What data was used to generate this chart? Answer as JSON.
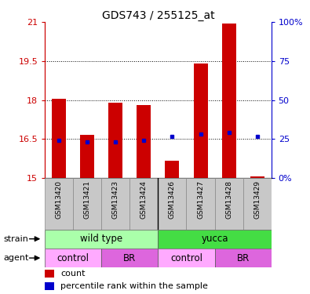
{
  "title": "GDS743 / 255125_at",
  "samples": [
    "GSM13420",
    "GSM13421",
    "GSM13423",
    "GSM13424",
    "GSM13426",
    "GSM13427",
    "GSM13428",
    "GSM13429"
  ],
  "bar_bottoms": [
    15.0,
    15.0,
    15.0,
    15.0,
    15.0,
    15.0,
    15.0,
    15.0
  ],
  "bar_tops": [
    18.05,
    16.65,
    17.9,
    17.8,
    15.65,
    19.4,
    20.95,
    15.05
  ],
  "percentile_values": [
    16.45,
    16.4,
    16.4,
    16.45,
    16.6,
    16.7,
    16.75,
    16.6
  ],
  "ylim_left": [
    15,
    21
  ],
  "ylim_right": [
    0,
    100
  ],
  "yticks_left": [
    15,
    16.5,
    18,
    19.5,
    21
  ],
  "yticks_right": [
    0,
    25,
    50,
    75,
    100
  ],
  "ytick_labels_left": [
    "15",
    "16.5",
    "18",
    "19.5",
    "21"
  ],
  "ytick_labels_right": [
    "0%",
    "25",
    "50",
    "75",
    "100%"
  ],
  "strain_groups": [
    {
      "label": "wild type",
      "start": 0,
      "end": 4,
      "color": "#AAFFAA"
    },
    {
      "label": "yucca",
      "start": 4,
      "end": 8,
      "color": "#44DD44"
    }
  ],
  "agent_groups": [
    {
      "label": "control",
      "start": 0,
      "end": 2,
      "color": "#FFAAFF"
    },
    {
      "label": "BR",
      "start": 2,
      "end": 4,
      "color": "#DD66DD"
    },
    {
      "label": "control",
      "start": 4,
      "end": 6,
      "color": "#FFAAFF"
    },
    {
      "label": "BR",
      "start": 6,
      "end": 8,
      "color": "#DD66DD"
    }
  ],
  "bar_color": "#CC0000",
  "dot_color": "#0000CC",
  "grid_color": "#000000",
  "left_tick_color": "#CC0000",
  "right_tick_color": "#0000CC",
  "background_label": "#C8C8C8",
  "bar_width": 0.5
}
